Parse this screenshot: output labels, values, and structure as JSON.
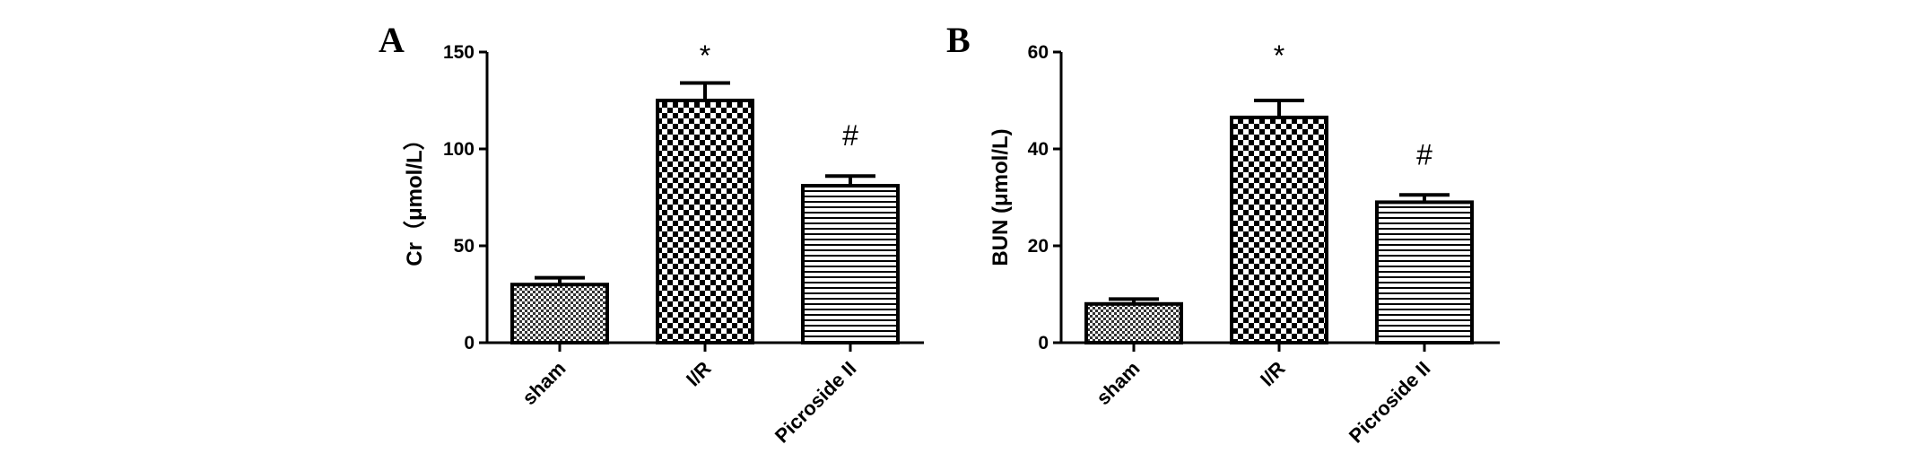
{
  "figure": {
    "panels": [
      "A",
      "B"
    ]
  },
  "chart_data": [
    {
      "type": "bar",
      "panel": "A",
      "categories": [
        "sham",
        "I/R",
        "Picroside II"
      ],
      "values": [
        30,
        125,
        81
      ],
      "errors": [
        3.5,
        9,
        5
      ],
      "patterns": [
        "fine-check",
        "coarse-check",
        "horizontal-lines"
      ],
      "significance": [
        "",
        "*",
        "#"
      ],
      "title": "",
      "xlabel": "",
      "ylabel": "Cr（μmol/L）",
      "ylim": [
        0,
        150
      ],
      "yticks": [
        0,
        50,
        100,
        150
      ],
      "grid": false,
      "legend": "none"
    },
    {
      "type": "bar",
      "panel": "B",
      "categories": [
        "sham",
        "I/R",
        "Picroside II"
      ],
      "values": [
        8,
        46.5,
        29
      ],
      "errors": [
        1,
        3.5,
        1.5
      ],
      "patterns": [
        "fine-check",
        "coarse-check",
        "horizontal-lines"
      ],
      "significance": [
        "",
        "*",
        "#"
      ],
      "title": "",
      "xlabel": "",
      "ylabel": "BUN (μmol/L)",
      "ylim": [
        0,
        60
      ],
      "yticks": [
        0,
        20,
        40,
        60
      ],
      "grid": false,
      "legend": "none"
    }
  ]
}
